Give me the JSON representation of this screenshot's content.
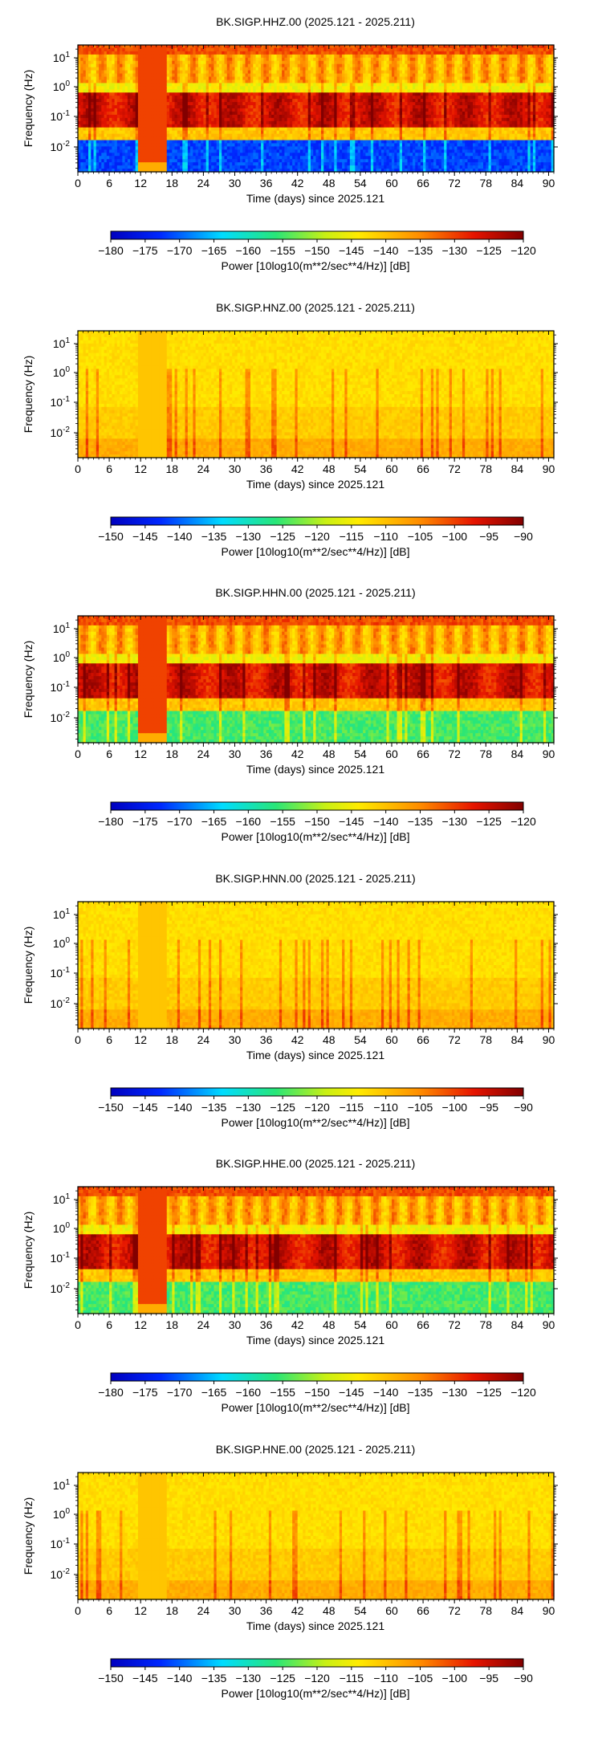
{
  "chart_data": [
    {
      "type": "heatmap",
      "title": "BK.SIGP.HHZ.00 (2025.121 - 2025.211)",
      "xlabel": "Time (days) since 2025.121",
      "ylabel": "Frequency (Hz)",
      "x_ticks": [
        "0",
        "6",
        "12",
        "18",
        "24",
        "30",
        "36",
        "42",
        "48",
        "54",
        "60",
        "66",
        "72",
        "78",
        "84",
        "90"
      ],
      "y_ticks": [
        {
          "base": "10",
          "exp": "1"
        },
        {
          "base": "10",
          "exp": "0"
        },
        {
          "base": "10",
          "exp": "-1"
        },
        {
          "base": "10",
          "exp": "-2"
        }
      ],
      "xlim": [
        0,
        91
      ],
      "y_scale": "log",
      "colorbar_label": "Power [10log10(m**2/sec**4/Hz)] [dB]",
      "colorbar_ticks": [
        "-180",
        "-175",
        "-170",
        "-165",
        "-160",
        "-155",
        "-150",
        "-145",
        "-140",
        "-135",
        "-130",
        "-125",
        "-120"
      ],
      "colorbar_range": [
        -180,
        -120
      ]
    },
    {
      "type": "heatmap",
      "title": "BK.SIGP.HNZ.00 (2025.121 - 2025.211)",
      "xlabel": "Time (days) since 2025.121",
      "ylabel": "Frequency (Hz)",
      "x_ticks": [
        "0",
        "6",
        "12",
        "18",
        "24",
        "30",
        "36",
        "42",
        "48",
        "54",
        "60",
        "66",
        "72",
        "78",
        "84",
        "90"
      ],
      "y_ticks": [
        {
          "base": "10",
          "exp": "1"
        },
        {
          "base": "10",
          "exp": "0"
        },
        {
          "base": "10",
          "exp": "-1"
        },
        {
          "base": "10",
          "exp": "-2"
        }
      ],
      "xlim": [
        0,
        91
      ],
      "y_scale": "log",
      "colorbar_label": "Power [10log10(m**2/sec**4/Hz)] [dB]",
      "colorbar_ticks": [
        "-150",
        "-145",
        "-140",
        "-135",
        "-130",
        "-125",
        "-120",
        "-115",
        "-110",
        "-105",
        "-100",
        "-95",
        "-90"
      ],
      "colorbar_range": [
        -150,
        -90
      ]
    },
    {
      "type": "heatmap",
      "title": "BK.SIGP.HHN.00 (2025.121 - 2025.211)",
      "xlabel": "Time (days) since 2025.121",
      "ylabel": "Frequency (Hz)",
      "x_ticks": [
        "0",
        "6",
        "12",
        "18",
        "24",
        "30",
        "36",
        "42",
        "48",
        "54",
        "60",
        "66",
        "72",
        "78",
        "84",
        "90"
      ],
      "y_ticks": [
        {
          "base": "10",
          "exp": "1"
        },
        {
          "base": "10",
          "exp": "0"
        },
        {
          "base": "10",
          "exp": "-1"
        },
        {
          "base": "10",
          "exp": "-2"
        }
      ],
      "xlim": [
        0,
        91
      ],
      "y_scale": "log",
      "colorbar_label": "Power [10log10(m**2/sec**4/Hz)] [dB]",
      "colorbar_ticks": [
        "-180",
        "-175",
        "-170",
        "-165",
        "-160",
        "-155",
        "-150",
        "-145",
        "-140",
        "-135",
        "-130",
        "-125",
        "-120"
      ],
      "colorbar_range": [
        -180,
        -120
      ]
    },
    {
      "type": "heatmap",
      "title": "BK.SIGP.HNN.00 (2025.121 - 2025.211)",
      "xlabel": "Time (days) since 2025.121",
      "ylabel": "Frequency (Hz)",
      "x_ticks": [
        "0",
        "6",
        "12",
        "18",
        "24",
        "30",
        "36",
        "42",
        "48",
        "54",
        "60",
        "66",
        "72",
        "78",
        "84",
        "90"
      ],
      "y_ticks": [
        {
          "base": "10",
          "exp": "1"
        },
        {
          "base": "10",
          "exp": "0"
        },
        {
          "base": "10",
          "exp": "-1"
        },
        {
          "base": "10",
          "exp": "-2"
        }
      ],
      "xlim": [
        0,
        91
      ],
      "y_scale": "log",
      "colorbar_label": "Power [10log10(m**2/sec**4/Hz)] [dB]",
      "colorbar_ticks": [
        "-150",
        "-145",
        "-140",
        "-135",
        "-130",
        "-125",
        "-120",
        "-115",
        "-110",
        "-105",
        "-100",
        "-95",
        "-90"
      ],
      "colorbar_range": [
        -150,
        -90
      ]
    },
    {
      "type": "heatmap",
      "title": "BK.SIGP.HHE.00 (2025.121 - 2025.211)",
      "xlabel": "Time (days) since 2025.121",
      "ylabel": "Frequency (Hz)",
      "x_ticks": [
        "0",
        "6",
        "12",
        "18",
        "24",
        "30",
        "36",
        "42",
        "48",
        "54",
        "60",
        "66",
        "72",
        "78",
        "84",
        "90"
      ],
      "y_ticks": [
        {
          "base": "10",
          "exp": "1"
        },
        {
          "base": "10",
          "exp": "0"
        },
        {
          "base": "10",
          "exp": "-1"
        },
        {
          "base": "10",
          "exp": "-2"
        }
      ],
      "xlim": [
        0,
        91
      ],
      "y_scale": "log",
      "colorbar_label": "Power [10log10(m**2/sec**4/Hz)] [dB]",
      "colorbar_ticks": [
        "-180",
        "-175",
        "-170",
        "-165",
        "-160",
        "-155",
        "-150",
        "-145",
        "-140",
        "-135",
        "-130",
        "-125",
        "-120"
      ],
      "colorbar_range": [
        -180,
        -120
      ]
    },
    {
      "type": "heatmap",
      "title": "BK.SIGP.HNE.00 (2025.121 - 2025.211)",
      "xlabel": "Time (days) since 2025.121",
      "ylabel": "Frequency (Hz)",
      "x_ticks": [
        "0",
        "6",
        "12",
        "18",
        "24",
        "30",
        "36",
        "42",
        "48",
        "54",
        "60",
        "66",
        "72",
        "78",
        "84",
        "90"
      ],
      "y_ticks": [
        {
          "base": "10",
          "exp": "1"
        },
        {
          "base": "10",
          "exp": "0"
        },
        {
          "base": "10",
          "exp": "-1"
        },
        {
          "base": "10",
          "exp": "-2"
        }
      ],
      "xlim": [
        0,
        91
      ],
      "y_scale": "log",
      "colorbar_label": "Power [10log10(m**2/sec**4/Hz)] [dB]",
      "colorbar_ticks": [
        "-150",
        "-145",
        "-140",
        "-135",
        "-130",
        "-125",
        "-120",
        "-115",
        "-110",
        "-105",
        "-100",
        "-95",
        "-90"
      ],
      "colorbar_range": [
        -150,
        -90
      ]
    }
  ]
}
